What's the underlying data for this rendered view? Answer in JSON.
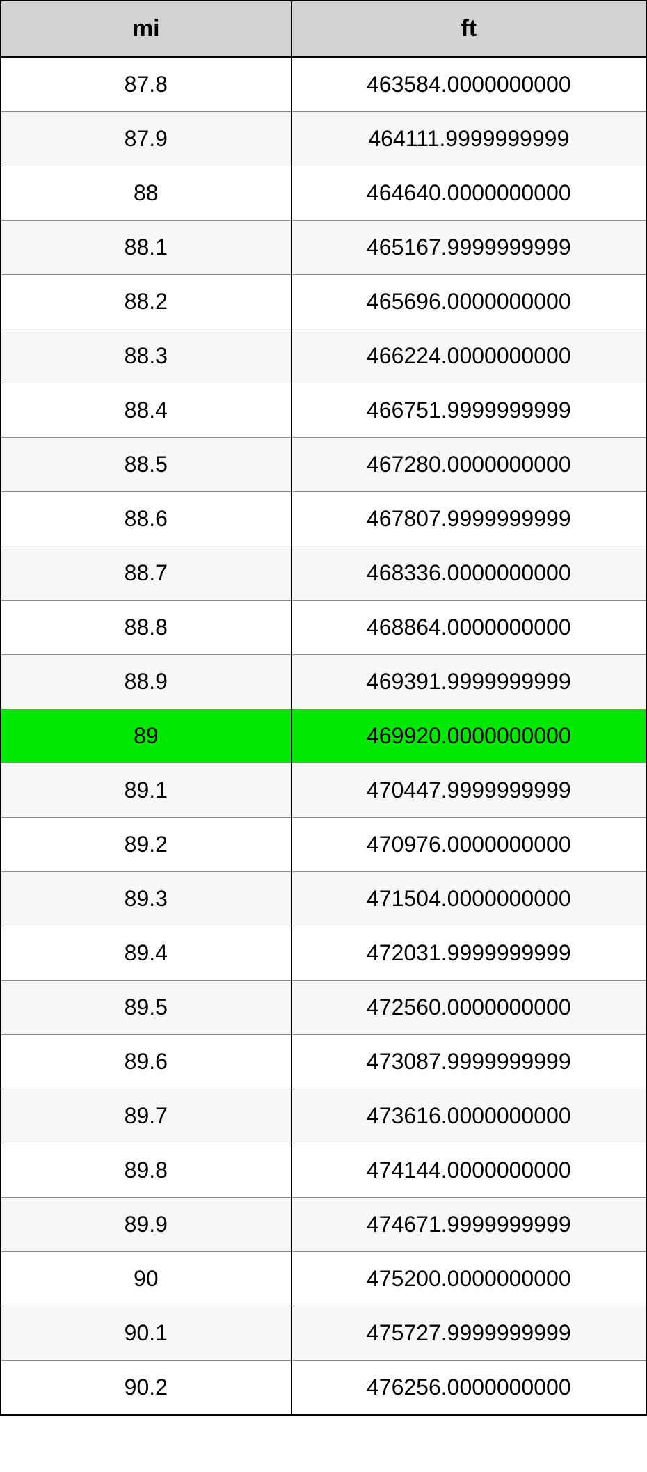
{
  "table": {
    "columns": [
      "mi",
      "ft"
    ],
    "header_bg": "#d3d3d3",
    "header_fontsize": 34,
    "cell_fontsize": 32,
    "border_color": "#000000",
    "inner_border_color": "#888888",
    "row_even_bg": "#ffffff",
    "row_odd_bg": "#f7f7f7",
    "highlight_bg": "#00e700",
    "highlight_index": 12,
    "col_widths": [
      "45%",
      "55%"
    ],
    "rows": [
      {
        "mi": "87.8",
        "ft": "463584.0000000000"
      },
      {
        "mi": "87.9",
        "ft": "464111.9999999999"
      },
      {
        "mi": "88",
        "ft": "464640.0000000000"
      },
      {
        "mi": "88.1",
        "ft": "465167.9999999999"
      },
      {
        "mi": "88.2",
        "ft": "465696.0000000000"
      },
      {
        "mi": "88.3",
        "ft": "466224.0000000000"
      },
      {
        "mi": "88.4",
        "ft": "466751.9999999999"
      },
      {
        "mi": "88.5",
        "ft": "467280.0000000000"
      },
      {
        "mi": "88.6",
        "ft": "467807.9999999999"
      },
      {
        "mi": "88.7",
        "ft": "468336.0000000000"
      },
      {
        "mi": "88.8",
        "ft": "468864.0000000000"
      },
      {
        "mi": "88.9",
        "ft": "469391.9999999999"
      },
      {
        "mi": "89",
        "ft": "469920.0000000000"
      },
      {
        "mi": "89.1",
        "ft": "470447.9999999999"
      },
      {
        "mi": "89.2",
        "ft": "470976.0000000000"
      },
      {
        "mi": "89.3",
        "ft": "471504.0000000000"
      },
      {
        "mi": "89.4",
        "ft": "472031.9999999999"
      },
      {
        "mi": "89.5",
        "ft": "472560.0000000000"
      },
      {
        "mi": "89.6",
        "ft": "473087.9999999999"
      },
      {
        "mi": "89.7",
        "ft": "473616.0000000000"
      },
      {
        "mi": "89.8",
        "ft": "474144.0000000000"
      },
      {
        "mi": "89.9",
        "ft": "474671.9999999999"
      },
      {
        "mi": "90",
        "ft": "475200.0000000000"
      },
      {
        "mi": "90.1",
        "ft": "475727.9999999999"
      },
      {
        "mi": "90.2",
        "ft": "476256.0000000000"
      }
    ]
  }
}
